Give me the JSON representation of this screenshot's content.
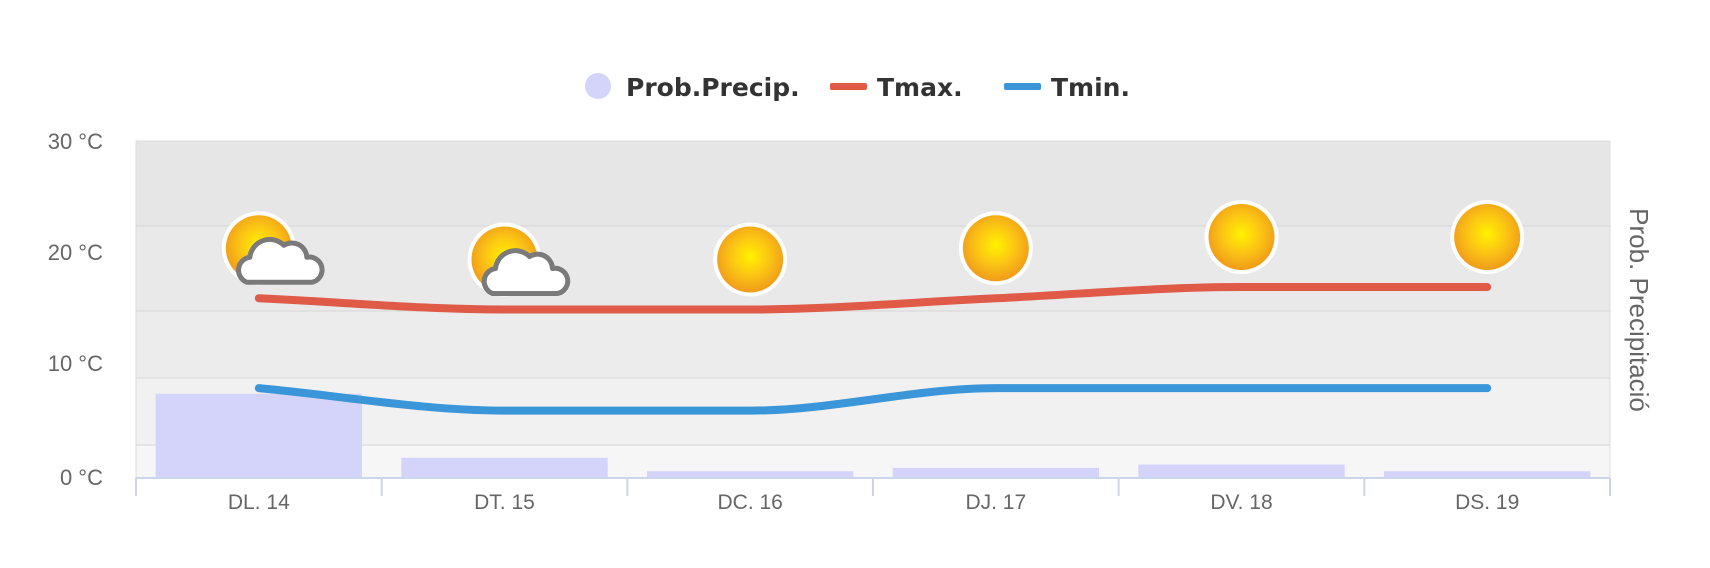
{
  "chart_data": {
    "type": "bar",
    "categories": [
      "DL. 14",
      "DT. 15",
      "DC. 16",
      "DJ. 17",
      "DV. 18",
      "DS. 19"
    ],
    "series": [
      {
        "name": "Prob.Precip.",
        "type": "bar",
        "color": "#d4d4fa",
        "values": [
          25,
          6,
          2,
          3,
          4,
          2
        ]
      },
      {
        "name": "Tmax.",
        "type": "line",
        "color": "#e05a48",
        "values": [
          16,
          15,
          15,
          16,
          17,
          17
        ]
      },
      {
        "name": "Tmin.",
        "type": "line",
        "color": "#3a96d8",
        "values": [
          8,
          6,
          6,
          8,
          8,
          8
        ]
      }
    ],
    "weather_icons": [
      "sun-cloud-icon",
      "sun-cloud-icon",
      "sun-icon",
      "sun-icon",
      "sun-icon",
      "sun-icon"
    ],
    "yaxis": {
      "ticks": [
        "0 °C",
        "10 °C",
        "20 °C",
        "30 °C"
      ],
      "range": [
        0,
        30
      ]
    },
    "y2label": "Prob. Precipitació",
    "y2range": [
      0,
      100
    ],
    "legend": {
      "position": "top-center",
      "items": [
        "Prob.Precip.",
        "Tmax.",
        "Tmin."
      ]
    },
    "grid": true
  }
}
